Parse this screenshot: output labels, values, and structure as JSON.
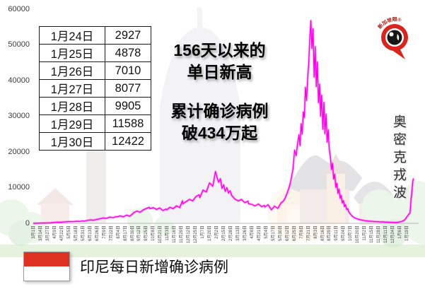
{
  "table": {
    "rows": [
      [
        "1月24日",
        "2927"
      ],
      [
        "1月25日",
        "4878"
      ],
      [
        "1月26日",
        "7010"
      ],
      [
        "1月27日",
        "8077"
      ],
      [
        "1月28日",
        "9905"
      ],
      [
        "1月29日",
        "11588"
      ],
      [
        "1月30日",
        "12422"
      ]
    ]
  },
  "annotations": {
    "record_high": [
      "156天以来的",
      "单日新高"
    ],
    "cumulative": [
      "累计确诊病例",
      "破434万起"
    ],
    "omicron_wave": "奥密克戎波"
  },
  "legend": {
    "caption": "印尼每日新增确诊病例"
  },
  "logo": {
    "label": "新加坡眼®"
  },
  "colors": {
    "line": "#ff00e6",
    "flag_red": "#dd3122",
    "flag_white": "#ffffff",
    "logo_red": "#d8251d"
  },
  "chart_data": {
    "type": "line",
    "title": "印尼每日新增确诊病例",
    "xlabel": "",
    "ylabel": "",
    "ylim": [
      0,
      60000
    ],
    "grid": false,
    "legend_position": "none",
    "y_ticks": [
      0,
      10000,
      20000,
      30000,
      40000,
      50000,
      60000
    ],
    "x_tick_interval_days": 13,
    "x_tick_labels": [
      "3月1日",
      "3月14日",
      "3月27日",
      "4月9日",
      "4月22日",
      "5月5日",
      "5月18日",
      "5月31日",
      "6月13日",
      "6月26日",
      "7月9日",
      "7月22日",
      "8月4日",
      "8月17日",
      "8月30日",
      "9月12日",
      "9月25日",
      "10月8日",
      "10月21日",
      "11月3日",
      "11月16日",
      "11月29日",
      "12月12日",
      "12月25日",
      "1月7日",
      "1月20日",
      "2月2日",
      "2月15日",
      "2月28日",
      "3月13日",
      "3月26日",
      "4月8日",
      "4月21日",
      "5月4日",
      "5月17日",
      "5月30日",
      "6月12日",
      "6月25日",
      "7月8日",
      "7月21日",
      "8月3日",
      "8月16日",
      "8月29日",
      "9月11日",
      "9月24日",
      "10月7日",
      "10月20日",
      "11月2日",
      "11月15日",
      "11月28日",
      "12月11日",
      "12月24日",
      "1月6日",
      "1月19日"
    ],
    "points": [
      [
        0,
        2
      ],
      [
        6,
        30
      ],
      [
        13,
        80
      ],
      [
        19,
        100
      ],
      [
        26,
        120
      ],
      [
        31,
        150
      ],
      [
        37,
        250
      ],
      [
        43,
        340
      ],
      [
        49,
        300
      ],
      [
        55,
        380
      ],
      [
        61,
        450
      ],
      [
        67,
        520
      ],
      [
        73,
        480
      ],
      [
        79,
        600
      ],
      [
        85,
        530
      ],
      [
        90,
        700
      ],
      [
        92,
        620
      ],
      [
        98,
        800
      ],
      [
        104,
        950
      ],
      [
        110,
        880
      ],
      [
        116,
        1100
      ],
      [
        121,
        1250
      ],
      [
        122,
        1300
      ],
      [
        128,
        1500
      ],
      [
        134,
        1400
      ],
      [
        140,
        1750
      ],
      [
        146,
        1600
      ],
      [
        152,
        1900
      ],
      [
        153,
        1800
      ],
      [
        159,
        2100
      ],
      [
        165,
        1850
      ],
      [
        171,
        2300
      ],
      [
        177,
        2000
      ],
      [
        183,
        2750
      ],
      [
        184,
        3000
      ],
      [
        190,
        3400
      ],
      [
        196,
        3100
      ],
      [
        202,
        3800
      ],
      [
        208,
        4200
      ],
      [
        213,
        4500
      ],
      [
        214,
        4100
      ],
      [
        220,
        4400
      ],
      [
        226,
        3900
      ],
      [
        232,
        4300
      ],
      [
        238,
        3600
      ],
      [
        244,
        4000
      ],
      [
        245,
        3800
      ],
      [
        251,
        4500
      ],
      [
        257,
        4100
      ],
      [
        263,
        4900
      ],
      [
        269,
        4400
      ],
      [
        274,
        6300
      ],
      [
        275,
        5500
      ],
      [
        281,
        6100
      ],
      [
        287,
        6700
      ],
      [
        293,
        6300
      ],
      [
        299,
        7500
      ],
      [
        305,
        8000
      ],
      [
        306,
        7200
      ],
      [
        312,
        9300
      ],
      [
        318,
        8800
      ],
      [
        324,
        11300
      ],
      [
        330,
        10400
      ],
      [
        335,
        14500
      ],
      [
        338,
        12800
      ],
      [
        341,
        11500
      ],
      [
        344,
        12500
      ],
      [
        347,
        9800
      ],
      [
        350,
        10800
      ],
      [
        353,
        9000
      ],
      [
        356,
        10000
      ],
      [
        359,
        8500
      ],
      [
        362,
        9100
      ],
      [
        365,
        7800
      ],
      [
        371,
        6800
      ],
      [
        377,
        6300
      ],
      [
        383,
        6700
      ],
      [
        389,
        5800
      ],
      [
        395,
        6200
      ],
      [
        396,
        5500
      ],
      [
        402,
        5300
      ],
      [
        408,
        4900
      ],
      [
        414,
        5400
      ],
      [
        420,
        4700
      ],
      [
        425,
        5000
      ],
      [
        426,
        4600
      ],
      [
        432,
        5200
      ],
      [
        438,
        3800
      ],
      [
        444,
        4800
      ],
      [
        450,
        4200
      ],
      [
        456,
        5700
      ],
      [
        460,
        6200
      ],
      [
        463,
        6900
      ],
      [
        466,
        8000
      ],
      [
        469,
        9200
      ],
      [
        472,
        10700
      ],
      [
        475,
        12700
      ],
      [
        478,
        15300
      ],
      [
        481,
        20500
      ],
      [
        484,
        19000
      ],
      [
        486,
        21800
      ],
      [
        489,
        24800
      ],
      [
        491,
        21800
      ],
      [
        493,
        27900
      ],
      [
        495,
        25000
      ],
      [
        497,
        31200
      ],
      [
        499,
        29700
      ],
      [
        501,
        38100
      ],
      [
        503,
        34400
      ],
      [
        505,
        40400
      ],
      [
        507,
        44700
      ],
      [
        509,
        51900
      ],
      [
        511,
        56800
      ],
      [
        513,
        49000
      ],
      [
        515,
        54500
      ],
      [
        517,
        41000
      ],
      [
        519,
        49500
      ],
      [
        521,
        38300
      ],
      [
        523,
        45200
      ],
      [
        525,
        33800
      ],
      [
        527,
        39000
      ],
      [
        529,
        30000
      ],
      [
        531,
        35900
      ],
      [
        533,
        26400
      ],
      [
        535,
        33900
      ],
      [
        537,
        25100
      ],
      [
        539,
        30600
      ],
      [
        541,
        22800
      ],
      [
        543,
        26200
      ],
      [
        545,
        20800
      ],
      [
        547,
        18600
      ],
      [
        549,
        15100
      ],
      [
        551,
        16800
      ],
      [
        553,
        12400
      ],
      [
        555,
        13800
      ],
      [
        557,
        10100
      ],
      [
        559,
        11200
      ],
      [
        561,
        8400
      ],
      [
        563,
        9600
      ],
      [
        565,
        7000
      ],
      [
        567,
        7800
      ],
      [
        569,
        5700
      ],
      [
        571,
        6400
      ],
      [
        573,
        4700
      ],
      [
        575,
        5200
      ],
      [
        577,
        3900
      ],
      [
        579,
        4100
      ],
      [
        581,
        3200
      ],
      [
        583,
        2800
      ],
      [
        585,
        2400
      ],
      [
        587,
        2100
      ],
      [
        589,
        1800
      ],
      [
        591,
        1600
      ],
      [
        594,
        1400
      ],
      [
        597,
        1200
      ],
      [
        600,
        1100
      ],
      [
        603,
        950
      ],
      [
        606,
        900
      ],
      [
        609,
        800
      ],
      [
        612,
        700
      ],
      [
        616,
        650
      ],
      [
        620,
        600
      ],
      [
        624,
        550
      ],
      [
        628,
        500
      ],
      [
        632,
        470
      ],
      [
        636,
        440
      ],
      [
        639,
        420
      ],
      [
        644,
        390
      ],
      [
        648,
        360
      ],
      [
        652,
        330
      ],
      [
        656,
        300
      ],
      [
        660,
        280
      ],
      [
        664,
        260
      ],
      [
        668,
        240
      ],
      [
        672,
        300
      ],
      [
        675,
        400
      ],
      [
        678,
        520
      ],
      [
        681,
        700
      ],
      [
        684,
        950
      ],
      [
        686,
        1300
      ],
      [
        688,
        1800
      ],
      [
        690,
        2200
      ],
      [
        692,
        2600
      ],
      [
        694,
        2927
      ],
      [
        695,
        4878
      ],
      [
        696,
        7010
      ],
      [
        697,
        8077
      ],
      [
        698,
        9905
      ],
      [
        699,
        11588
      ],
      [
        700,
        12422
      ]
    ]
  }
}
